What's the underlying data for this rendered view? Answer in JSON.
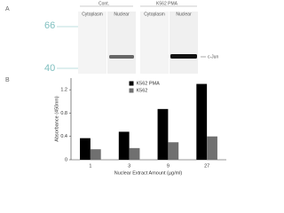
{
  "figure": {
    "panel_a": "A",
    "panel_b": "B",
    "groups": [
      "Cont.",
      "K562 PMA"
    ],
    "lanes": [
      "Cytoplasm",
      "Nuclear",
      "Cytoplasm",
      "Nuclear"
    ],
    "markers": [
      66,
      40
    ],
    "band_label": "c-Jun"
  },
  "chart_data": {
    "type": "bar",
    "x_label": "Nuclear Extract Amount (µg/ml)",
    "y_label": "Absorbance (450nm)",
    "categories": [
      "1",
      "3",
      "9",
      "27"
    ],
    "series": [
      {
        "name": "K562 PMA",
        "color": "#000000",
        "values": [
          0.37,
          0.48,
          0.87,
          1.3
        ]
      },
      {
        "name": "K562",
        "color": "#707070",
        "values": [
          0.18,
          0.2,
          0.3,
          0.4
        ]
      }
    ],
    "ylim": [
      0,
      1.4
    ],
    "yticks": [
      0,
      0.4,
      0.8,
      1.2
    ],
    "legend": "top-center"
  }
}
